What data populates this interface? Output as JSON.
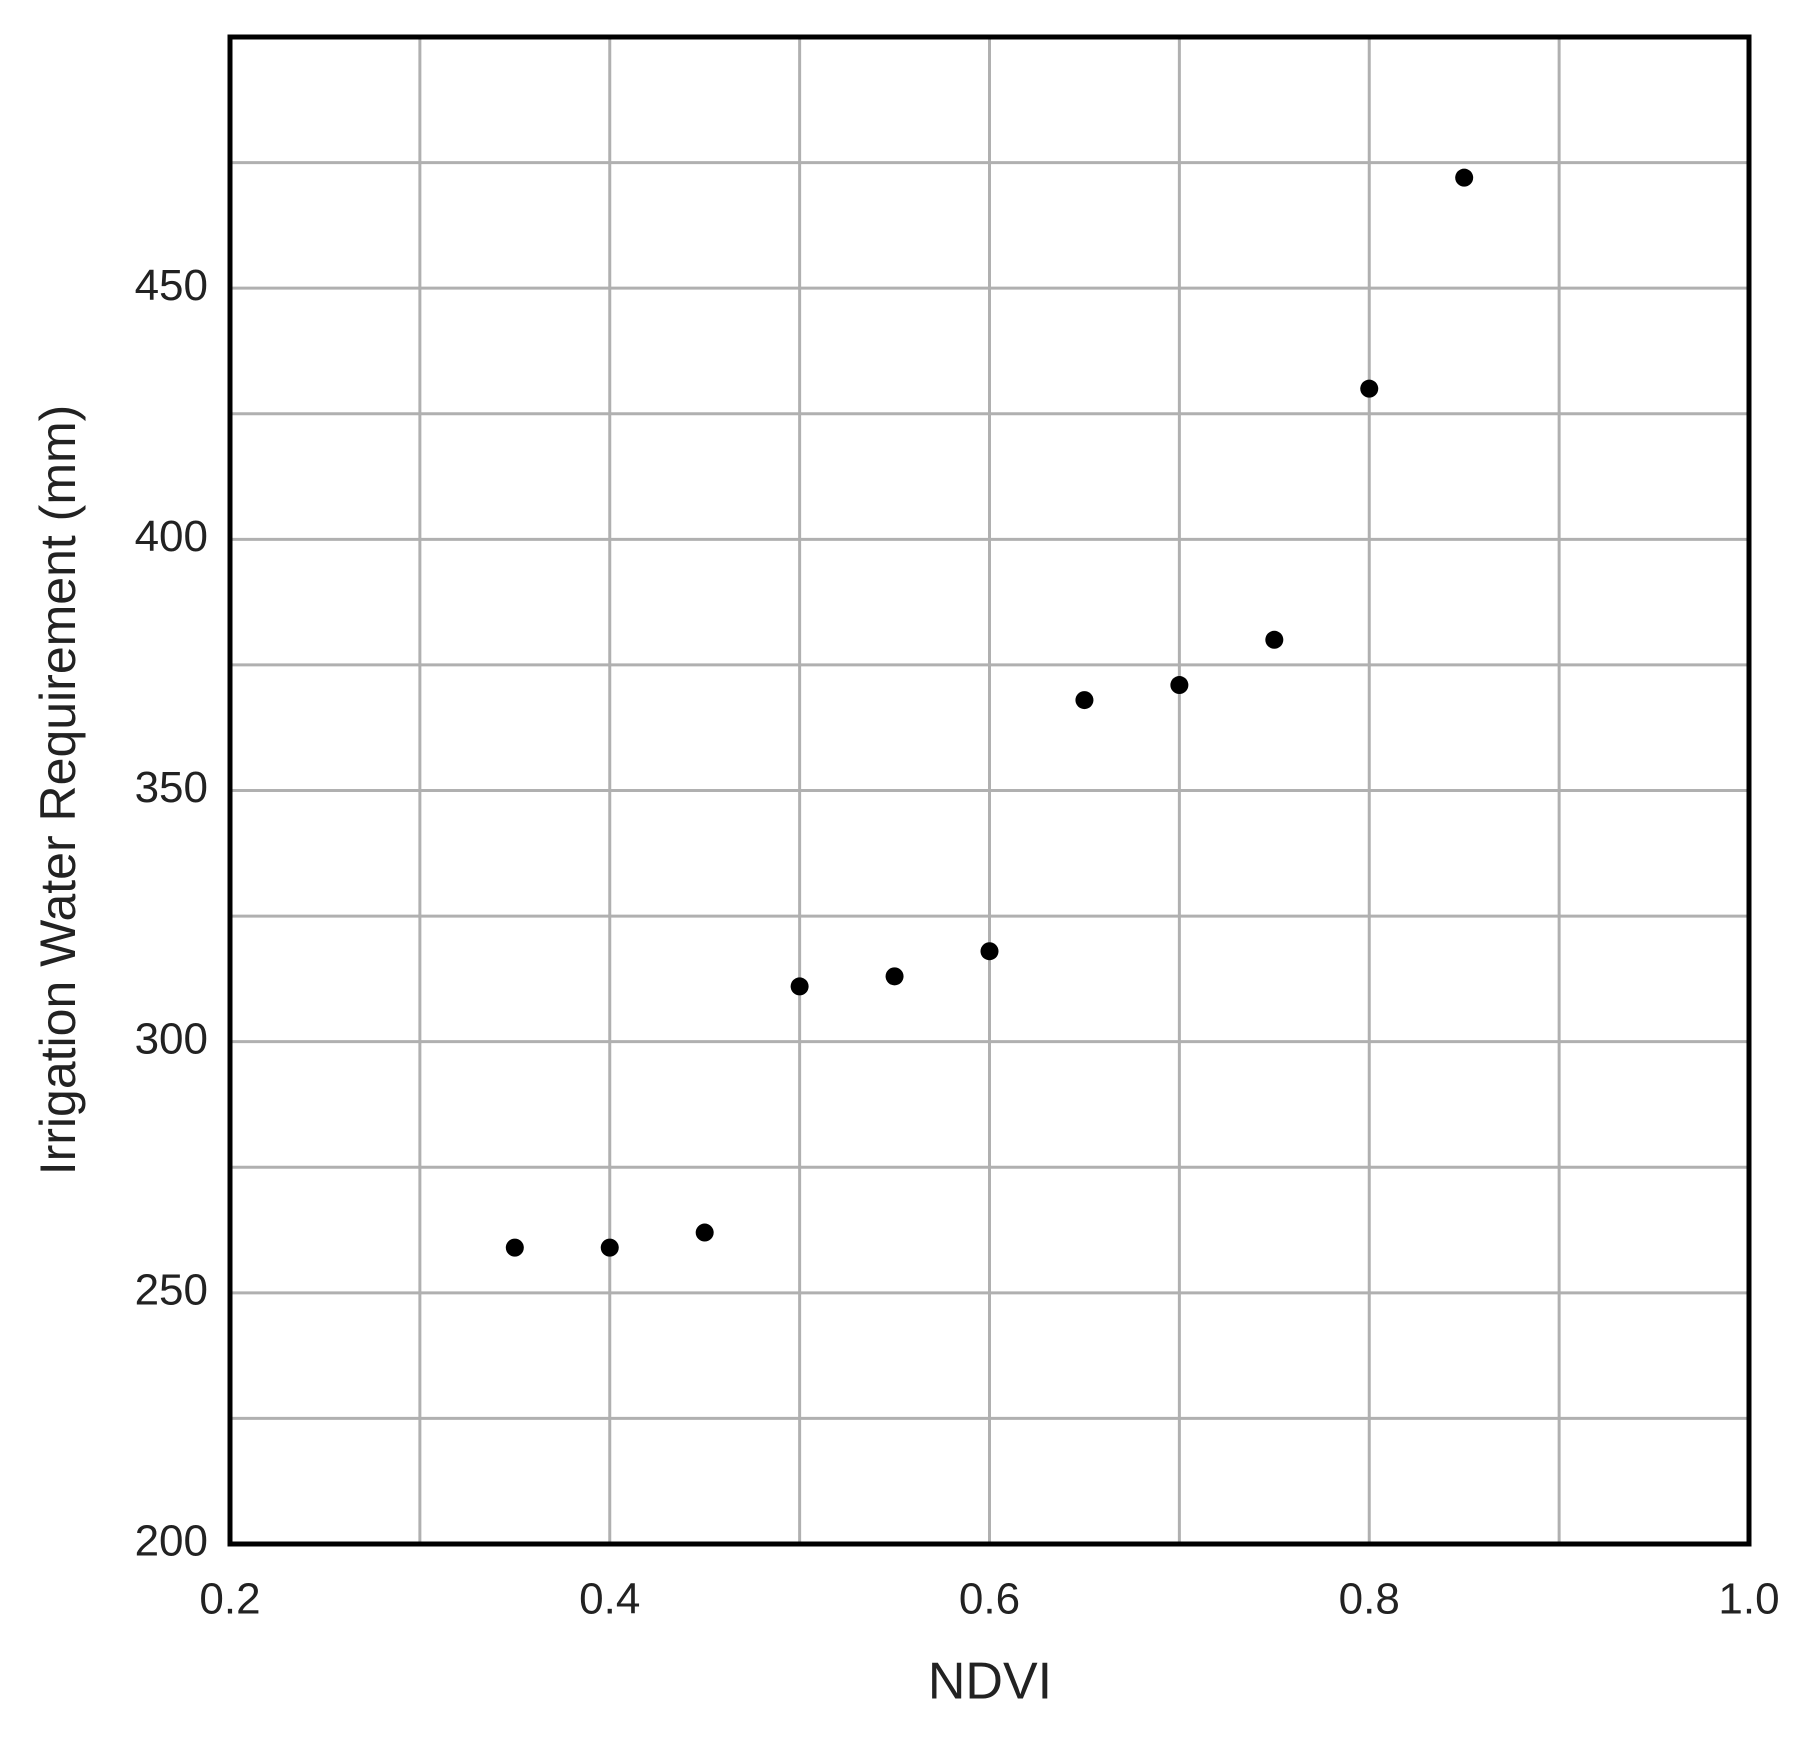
{
  "chart_data": {
    "type": "scatter",
    "x_label": "NDVI",
    "y_label": "Irrigation Water Requirement (mm)",
    "x": [
      0.35,
      0.4,
      0.45,
      0.5,
      0.55,
      0.6,
      0.65,
      0.7,
      0.75,
      0.8,
      0.85
    ],
    "values": [
      259,
      259,
      262,
      311,
      313,
      318,
      368,
      371,
      380,
      430,
      472
    ],
    "color": "#000000",
    "xlim": [
      0.2,
      1
    ],
    "xticks": [
      0.2,
      0.4,
      0.6,
      0.8,
      {
        "value": 1,
        "label": "1.0"
      }
    ],
    "x_minor_grid": [
      0.3,
      0.5,
      0.7,
      0.9
    ],
    "ylim": [
      200,
      500
    ],
    "yticks": [
      200,
      250,
      300,
      350,
      400,
      450
    ],
    "y_minor_grid": [
      225,
      275,
      325,
      375,
      425,
      475
    ],
    "grid": true
  }
}
